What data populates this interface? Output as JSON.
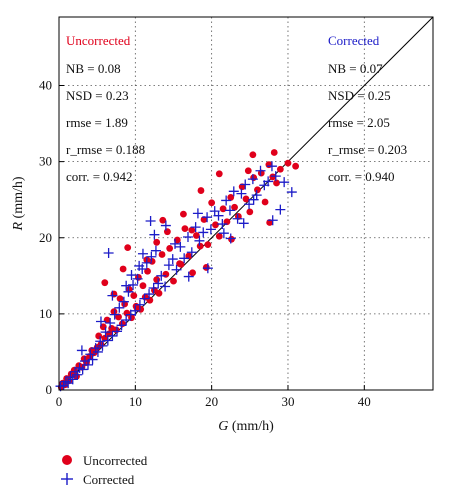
{
  "chart_data": {
    "type": "scatter",
    "xlabel_var": "G",
    "xlabel_unit": " (mm/h)",
    "ylabel_var": "R",
    "ylabel_unit": " (mm/h)",
    "xlim": [
      0,
      49
    ],
    "ylim": [
      0,
      49
    ],
    "xticks": [
      0,
      10,
      20,
      30,
      40
    ],
    "yticks": [
      0,
      10,
      20,
      30,
      40
    ],
    "grid": true,
    "one_to_one_line": true,
    "legend_placement": "below-left",
    "series": [
      {
        "name": "Uncorrected",
        "marker": "circle",
        "color": "#e0001b",
        "x": [
          0.3,
          0.5,
          0.8,
          1.0,
          1.3,
          1.6,
          2.0,
          2.3,
          2.6,
          3.0,
          3.3,
          3.6,
          4.0,
          4.3,
          4.6,
          5.0,
          5.2,
          5.5,
          5.8,
          6.0,
          6.3,
          6.6,
          6.9,
          7.2,
          7.5,
          7.8,
          8.0,
          8.3,
          8.6,
          8.9,
          9.2,
          9.5,
          9.8,
          10.1,
          10.4,
          10.7,
          11.0,
          11.3,
          11.6,
          11.9,
          12.2,
          12.5,
          12.8,
          13.1,
          13.5,
          14.0,
          14.5,
          15.0,
          15.5,
          16.0,
          16.5,
          17.0,
          17.5,
          18.0,
          18.5,
          19.0,
          19.5,
          20.0,
          20.5,
          21.0,
          21.5,
          22.0,
          22.5,
          23.0,
          23.5,
          24.0,
          24.5,
          25.0,
          25.5,
          26.0,
          26.5,
          27.0,
          27.5,
          28.0,
          28.5,
          29.0,
          30.0,
          31.0,
          7.2,
          9.0,
          11.5,
          12.8,
          14.2,
          16.3,
          18.6,
          21.0,
          24.8,
          27.6,
          6.0,
          8.4,
          10.2,
          13.6,
          15.8,
          17.4,
          19.3,
          22.6,
          25.4,
          28.2
        ],
        "y": [
          0.4,
          0.9,
          0.7,
          1.5,
          1.2,
          2.1,
          2.6,
          1.8,
          3.2,
          3.0,
          4.1,
          3.6,
          4.4,
          5.2,
          4.9,
          5.6,
          7.1,
          6.0,
          8.3,
          6.8,
          9.2,
          7.4,
          8.1,
          10.3,
          7.9,
          9.6,
          12.0,
          8.7,
          11.3,
          10.1,
          13.2,
          9.5,
          12.4,
          11.0,
          14.8,
          10.6,
          13.7,
          12.2,
          15.6,
          11.8,
          16.9,
          13.1,
          14.5,
          12.7,
          17.8,
          15.2,
          18.6,
          14.3,
          19.7,
          16.5,
          21.2,
          17.6,
          15.4,
          20.3,
          18.9,
          22.4,
          19.1,
          24.6,
          21.7,
          20.2,
          23.8,
          22.1,
          25.3,
          24.0,
          22.8,
          26.7,
          25.1,
          23.4,
          27.9,
          26.3,
          28.5,
          24.7,
          29.6,
          28.0,
          27.2,
          29.0,
          29.8,
          29.4,
          12.6,
          18.7,
          17.1,
          19.4,
          20.8,
          23.1,
          26.2,
          28.4,
          28.8,
          22.0,
          14.1,
          15.9,
          10.8,
          22.3,
          16.6,
          21.0,
          16.1,
          19.8,
          30.9,
          31.2
        ]
      },
      {
        "name": "Corrected",
        "marker": "plus",
        "color": "#1c1cc8",
        "x": [
          0.2,
          0.6,
          0.9,
          1.2,
          1.5,
          1.8,
          2.1,
          2.4,
          2.7,
          3.1,
          3.4,
          3.8,
          4.1,
          4.4,
          4.8,
          5.1,
          5.4,
          5.7,
          6.1,
          6.4,
          6.7,
          7.0,
          7.3,
          7.6,
          7.9,
          8.2,
          8.5,
          8.8,
          9.1,
          9.4,
          9.7,
          10.0,
          10.3,
          10.6,
          10.9,
          11.2,
          11.5,
          11.8,
          12.1,
          12.4,
          12.7,
          13.0,
          13.4,
          13.9,
          14.4,
          14.9,
          15.4,
          15.9,
          16.4,
          16.9,
          17.4,
          17.9,
          18.4,
          18.9,
          19.4,
          19.9,
          20.4,
          20.9,
          21.4,
          21.9,
          22.4,
          22.9,
          23.4,
          23.9,
          24.4,
          24.9,
          25.4,
          25.9,
          26.4,
          26.9,
          27.4,
          27.9,
          28.4,
          29.0,
          29.5,
          30.5,
          3.0,
          5.5,
          7.0,
          9.5,
          11.0,
          12.5,
          14.0,
          17.0,
          19.5,
          22.5,
          25.5,
          28.0,
          6.5,
          8.8,
          10.5,
          12.0,
          15.2,
          18.2,
          21.6,
          24.2
        ],
        "y": [
          0.5,
          0.6,
          1.1,
          0.9,
          1.7,
          1.4,
          2.4,
          2.0,
          2.9,
          2.7,
          3.8,
          3.3,
          4.7,
          4.0,
          5.5,
          5.0,
          6.4,
          5.8,
          7.6,
          6.5,
          8.8,
          7.1,
          9.9,
          7.7,
          10.8,
          8.5,
          11.6,
          9.2,
          12.9,
          9.9,
          13.8,
          10.4,
          14.6,
          11.2,
          15.9,
          12.0,
          16.7,
          12.6,
          17.5,
          13.4,
          18.3,
          14.0,
          15.0,
          13.6,
          16.4,
          17.2,
          15.8,
          18.8,
          17.3,
          20.1,
          18.1,
          21.4,
          19.6,
          20.7,
          22.7,
          21.1,
          23.5,
          22.9,
          21.8,
          24.9,
          23.6,
          26.1,
          22.5,
          25.8,
          27.0,
          24.4,
          27.7,
          25.6,
          28.8,
          26.9,
          27.4,
          29.4,
          28.1,
          23.7,
          27.3,
          26.0,
          5.2,
          9.0,
          12.4,
          15.1,
          17.9,
          20.4,
          21.6,
          14.9,
          16.0,
          19.9,
          25.0,
          22.3,
          18.0,
          13.7,
          16.3,
          22.2,
          19.2,
          23.2,
          20.6,
          21.9
        ]
      }
    ],
    "annotations": {
      "uncorrected": {
        "title": "Uncorrected",
        "lines": [
          "NB = 0.08",
          "NSD = 0.23",
          "rmse = 1.89",
          "r_rmse = 0.188",
          "corr. = 0.942"
        ]
      },
      "corrected": {
        "title": "Corrected",
        "lines": [
          "NB = 0.07",
          "NSD = 0.25",
          "rmse = 2.05",
          "r_rmse = 0.203",
          "corr. = 0.940"
        ]
      }
    }
  }
}
